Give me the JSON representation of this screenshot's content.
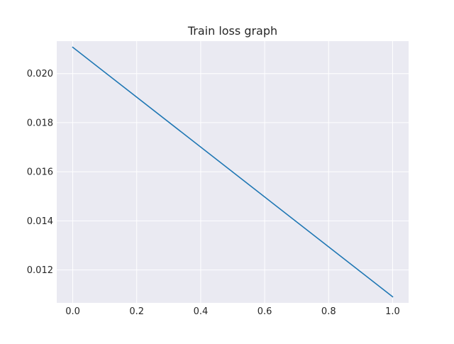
{
  "chart_data": {
    "type": "line",
    "title": "Train loss graph",
    "xlabel": "",
    "ylabel": "",
    "x": [
      0.0,
      1.0
    ],
    "series": [
      {
        "values": [
          0.02107,
          0.01091
        ],
        "color": "#1f77b4"
      }
    ],
    "xlim": [
      -0.05,
      1.05
    ],
    "ylim": [
      0.01066,
      0.02132
    ],
    "xticks": [
      0.0,
      0.2,
      0.4,
      0.6,
      0.8,
      1.0
    ],
    "xtick_labels": [
      "0.0",
      "0.2",
      "0.4",
      "0.6",
      "0.8",
      "1.0"
    ],
    "yticks": [
      0.012,
      0.014,
      0.016,
      0.018,
      0.02
    ],
    "ytick_labels": [
      "0.012",
      "0.014",
      "0.016",
      "0.018",
      "0.020"
    ],
    "grid": true,
    "style": "seaborn-darkgrid",
    "colors": {
      "plot_background": "#eaeaf2",
      "grid": "#ffffff",
      "line": "#1f77b4",
      "text": "#262626"
    }
  }
}
